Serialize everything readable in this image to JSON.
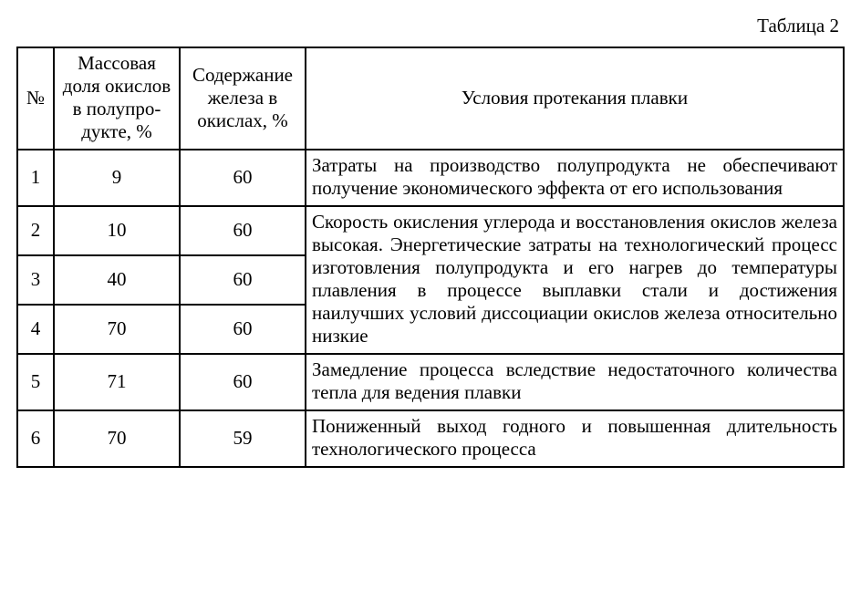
{
  "caption": "Таблица 2",
  "columns": {
    "c0": "№",
    "c1": "Массовая доля окислов в полупро­дукте, %",
    "c2": "Содержание железа в окислах, %",
    "c3": "Условия протекания плавки"
  },
  "rows": [
    {
      "n": "1",
      "mass": "9",
      "fe": "60",
      "desc": "Затраты на производство полупродукта не обеспечивают получение экономического эф­фекта от его использования"
    },
    {
      "n": "2",
      "mass": "10",
      "fe": "60",
      "desc": "Скорость окисления углерода и восстановле­ния окислов железа высокая. Энергетические затраты на технологический процесс изготов­ления полупродукта и его нагрев до темпера­туры плавления в процессе выплавки стали и достижения наилучших условий диссоциации окислов железа относительно низкие"
    },
    {
      "n": "3",
      "mass": "40",
      "fe": "60",
      "desc": null
    },
    {
      "n": "4",
      "mass": "70",
      "fe": "60",
      "desc": null
    },
    {
      "n": "5",
      "mass": "71",
      "fe": "60",
      "desc": "Замедление процесса вследствие недостаточ­ного количества тепла для ведения плавки"
    },
    {
      "n": "6",
      "mass": "70",
      "fe": "59",
      "desc": "Пониженный выход годного и повышенная длительность технологического процесса"
    }
  ]
}
